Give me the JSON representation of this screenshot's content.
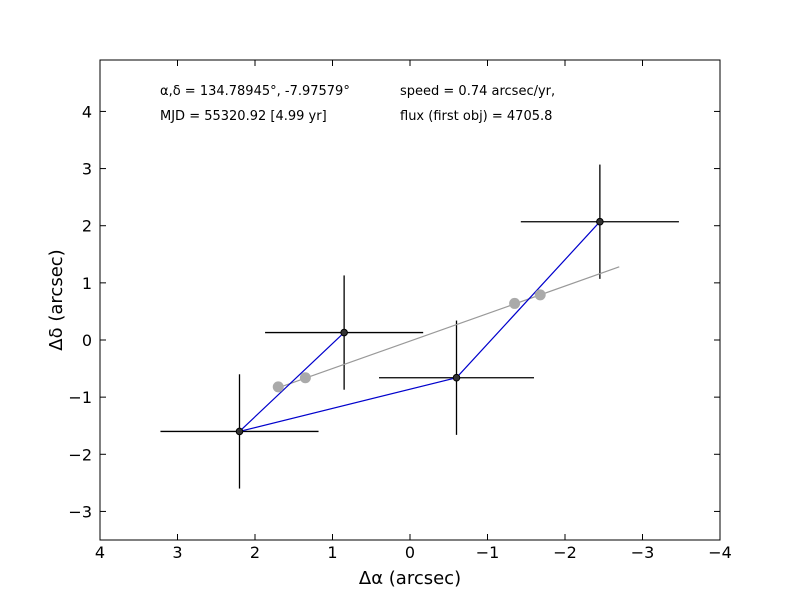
{
  "chart_data": {
    "type": "scatter",
    "xlabel": "Δα (arcsec)",
    "ylabel": "Δδ (arcsec)",
    "xlim": [
      4,
      -4
    ],
    "ylim": [
      -3.5,
      4.9
    ],
    "xticks": [
      4,
      3,
      2,
      1,
      0,
      -1,
      -2,
      -3,
      -4
    ],
    "xtick_labels": [
      "4",
      "3",
      "2",
      "1",
      "0",
      "−1",
      "−2",
      "−3",
      "−4"
    ],
    "yticks": [
      -3,
      -2,
      -1,
      0,
      1,
      2,
      3,
      4
    ],
    "ytick_labels": [
      "−3",
      "−2",
      "−1",
      "0",
      "1",
      "2",
      "3",
      "4"
    ],
    "grid": false,
    "annotations": [
      {
        "text": "α,δ = 134.78945°, -7.97579°"
      },
      {
        "text": "MJD = 55320.92 [4.99 yr]"
      },
      {
        "text": "speed = 0.74 arcsec/yr,"
      },
      {
        "text": "flux (first obj) = 4705.8"
      }
    ],
    "series": [
      {
        "kind": "observations",
        "color": "#000000",
        "marker_color": "#333333",
        "x": [
          2.2,
          0.85,
          -0.6,
          -2.45
        ],
        "y": [
          -1.6,
          0.13,
          -0.66,
          2.07
        ],
        "xerr": [
          1.02,
          1.02,
          1.0,
          1.02
        ],
        "yerr": [
          1.0,
          1.0,
          1.0,
          1.0
        ]
      },
      {
        "kind": "path",
        "color": "#0000cc",
        "x": [
          0.85,
          2.2,
          -0.6,
          -2.45
        ],
        "y": [
          0.13,
          -1.6,
          -0.66,
          2.07
        ]
      },
      {
        "kind": "fit_line",
        "color": "#999999",
        "x": [
          1.75,
          -2.7
        ],
        "y": [
          -0.86,
          1.28
        ]
      },
      {
        "kind": "fit_points",
        "color": "#aaaaaa",
        "x": [
          1.7,
          1.35,
          -1.35,
          -1.68
        ],
        "y": [
          -0.82,
          -0.66,
          0.64,
          0.79
        ]
      }
    ]
  }
}
